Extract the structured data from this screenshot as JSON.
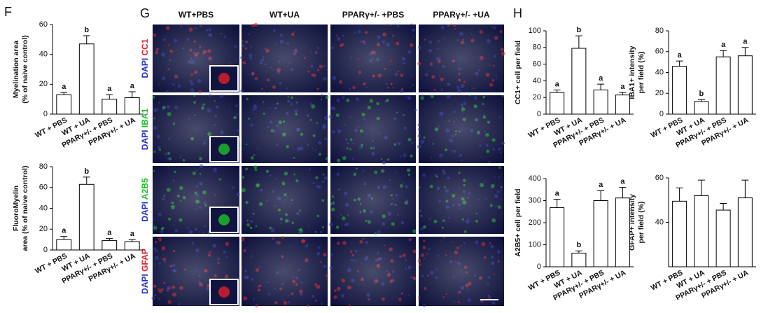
{
  "panel_labels": [
    "F",
    "G",
    "H"
  ],
  "image_panel": {
    "columns": [
      "WT+PBS",
      "WT+UA",
      "PPARγ+/- +PBS",
      "PPARγ+/- +UA"
    ],
    "rows": [
      {
        "stain": "DAPI",
        "marker": "CC1",
        "marker_color": "#e0202a"
      },
      {
        "stain": "DAPI",
        "marker": "IBA1",
        "marker_color": "#1fbf2a"
      },
      {
        "stain": "DAPI",
        "marker": "A2B5",
        "marker_color": "#1fbf2a"
      },
      {
        "stain": "DAPI",
        "marker": "GFAP",
        "marker_color": "#e0202a"
      }
    ],
    "stain_color": "#2030c8"
  },
  "chart_data": [
    {
      "type": "bar",
      "ylabel": [
        "Myelination area",
        "(% of naive control)"
      ],
      "categories": [
        "WT + PBS",
        "WT + UA",
        "PPARγ+/- + PBS",
        "PPARγ+/- + UA"
      ],
      "values": [
        13,
        47,
        10,
        11
      ],
      "errors": [
        1.5,
        5.5,
        3,
        4
      ],
      "letters": [
        "a",
        "b",
        "a",
        "a"
      ],
      "ylim": [
        0,
        60
      ],
      "yticks": [
        0,
        20,
        40,
        60
      ],
      "color": "#ffffff"
    },
    {
      "type": "bar",
      "ylabel": [
        "FluoroMyelin",
        "area (% of naive control)"
      ],
      "categories": [
        "WT + PBS",
        "WT + UA",
        "PPARγ+/- + PBS",
        "PPARγ+/- + UA"
      ],
      "values": [
        10,
        63,
        9,
        8
      ],
      "errors": [
        3,
        7,
        2,
        2
      ],
      "letters": [
        "a",
        "b",
        "a",
        "a"
      ],
      "ylim": [
        0,
        80
      ],
      "yticks": [
        0,
        20,
        40,
        60,
        80
      ],
      "color": "#ffffff"
    },
    {
      "type": "bar",
      "ylabel": [
        "CC1+ cell per field"
      ],
      "categories": [
        "WT + PBS",
        "WT + UA",
        "PPARγ+/- + PBS",
        "PPARγ+/- + UA"
      ],
      "values": [
        26,
        79,
        29,
        23
      ],
      "errors": [
        3,
        15,
        7,
        3
      ],
      "letters": [
        "a",
        "b",
        "a",
        "a"
      ],
      "ylim": [
        0,
        100
      ],
      "yticks": [
        0,
        20,
        40,
        60,
        80,
        100
      ],
      "color": "#ffffff"
    },
    {
      "type": "bar",
      "ylabel": [
        "IBA1+ intensity",
        "per field (%)"
      ],
      "categories": [
        "WT + PBS",
        "WT + UA",
        "PPARγ+/- + PBS",
        "PPARγ+/- + UA"
      ],
      "values": [
        46,
        12,
        55,
        56
      ],
      "errors": [
        5,
        2,
        6,
        8
      ],
      "letters": [
        "a",
        "b",
        "a",
        "a"
      ],
      "ylim": [
        0,
        80
      ],
      "yticks": [
        0,
        20,
        40,
        60,
        80
      ],
      "color": "#ffffff"
    },
    {
      "type": "bar",
      "ylabel": [
        "A2B5+ cell per field"
      ],
      "categories": [
        "WT + PBS",
        "WT + UA",
        "PPARγ+/- + PBS",
        "PPARγ+/- + UA"
      ],
      "values": [
        268,
        62,
        300,
        312
      ],
      "errors": [
        38,
        10,
        45,
        48
      ],
      "letters": [
        "a",
        "b",
        "a",
        "a"
      ],
      "ylim": [
        0,
        400
      ],
      "yticks": [
        0,
        100,
        200,
        300,
        400
      ],
      "color": "#ffffff"
    },
    {
      "type": "bar",
      "ylabel": [
        "GFAP+ intensity",
        "per field (%)"
      ],
      "categories": [
        "WT + PBS",
        "WT + UA",
        "PPARγ+/- + PBS",
        "PPARγ+/- + UA"
      ],
      "values": [
        49.5,
        52,
        45.5,
        51
      ],
      "errors": [
        6,
        7,
        3,
        8
      ],
      "ylim": [
        20,
        60
      ],
      "yticks": [
        40,
        60
      ],
      "color": "#ffffff"
    }
  ]
}
